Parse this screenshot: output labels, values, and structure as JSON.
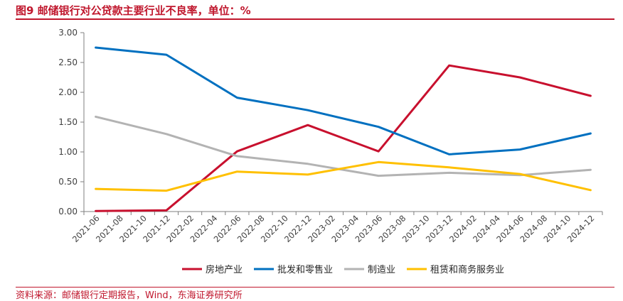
{
  "header": {
    "title": "图9 邮储银行对公贷款主要行业不良率，单位：%"
  },
  "footer": {
    "source": "资料来源：邮储银行定期报告，Wind，东海证券研究所"
  },
  "chart_data": {
    "type": "line",
    "title": "图9 邮储银行对公贷款主要行业不良率，单位：%",
    "xlabel": "",
    "ylabel": "",
    "ylim": [
      0,
      3
    ],
    "yticks": [
      "0.00",
      "0.50",
      "1.00",
      "1.50",
      "2.00",
      "2.50",
      "3.00"
    ],
    "categories": [
      "2021-06",
      "2021-08",
      "2021-10",
      "2021-12",
      "2022-02",
      "2022-04",
      "2022-06",
      "2022-08",
      "2022-10",
      "2022-12",
      "2023-02",
      "2023-04",
      "2023-06",
      "2023-08",
      "2023-10",
      "2023-12",
      "2024-02",
      "2024-04",
      "2024-06",
      "2024-08",
      "2024-10",
      "2024-12"
    ],
    "legend_position": "bottom",
    "grid": false,
    "series": [
      {
        "name": "房地产业",
        "color": "#c8102e",
        "points": [
          [
            "2021-06",
            0.01
          ],
          [
            "2021-12",
            0.02
          ],
          [
            "2022-06",
            1.01
          ],
          [
            "2022-12",
            1.45
          ],
          [
            "2023-06",
            1.01
          ],
          [
            "2023-12",
            2.45
          ],
          [
            "2024-06",
            2.25
          ],
          [
            "2024-12",
            1.94
          ]
        ]
      },
      {
        "name": "批发和零售业",
        "color": "#0070c0",
        "points": [
          [
            "2021-06",
            2.75
          ],
          [
            "2021-12",
            2.63
          ],
          [
            "2022-06",
            1.91
          ],
          [
            "2022-12",
            1.7
          ],
          [
            "2023-06",
            1.42
          ],
          [
            "2023-12",
            0.96
          ],
          [
            "2024-06",
            1.04
          ],
          [
            "2024-12",
            1.31
          ]
        ]
      },
      {
        "name": "制造业",
        "color": "#b3b3b3",
        "points": [
          [
            "2021-06",
            1.59
          ],
          [
            "2021-12",
            1.3
          ],
          [
            "2022-06",
            0.93
          ],
          [
            "2022-12",
            0.8
          ],
          [
            "2023-06",
            0.6
          ],
          [
            "2023-12",
            0.65
          ],
          [
            "2024-06",
            0.61
          ],
          [
            "2024-12",
            0.7
          ]
        ]
      },
      {
        "name": "租赁和商务服务业",
        "color": "#ffc000",
        "points": [
          [
            "2021-06",
            0.38
          ],
          [
            "2021-12",
            0.35
          ],
          [
            "2022-06",
            0.67
          ],
          [
            "2022-12",
            0.62
          ],
          [
            "2023-06",
            0.83
          ],
          [
            "2023-12",
            0.74
          ],
          [
            "2024-06",
            0.63
          ],
          [
            "2024-12",
            0.36
          ]
        ]
      }
    ]
  }
}
